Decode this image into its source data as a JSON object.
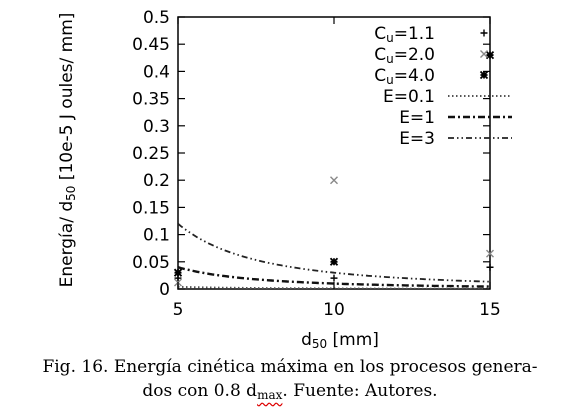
{
  "chart_data": {
    "type": "line",
    "x_label_main": "d",
    "x_label_sub": "50",
    "x_label_unit": " [mm]",
    "y_label_main": "Energía/ d",
    "y_label_sub": "50",
    "y_label_unit": " [10e-5 J oules/ mm]",
    "xlim": [
      5,
      15
    ],
    "ylim": [
      0,
      0.5
    ],
    "x_ticks": [
      "5",
      "10",
      "15"
    ],
    "y_ticks": [
      "0",
      "0.05",
      "0.1",
      "0.15",
      "0.2",
      "0.25",
      "0.3",
      "0.35",
      "0.4",
      "0.45",
      "0.5"
    ],
    "curves": [
      {
        "name": "E=0.1",
        "style": "dotted",
        "energy": 0.1
      },
      {
        "name": "E=1",
        "style": "dashdot",
        "energy": 1
      },
      {
        "name": "E=3",
        "style": "dashdotdot",
        "energy": 3
      }
    ],
    "scatter": [
      {
        "name_main": "C",
        "name_sub": "u",
        "name_rest": "=1.1",
        "marker": "plus",
        "points": [
          [
            5,
            0.02
          ],
          [
            10,
            0.02
          ],
          [
            15,
            0.04
          ]
        ]
      },
      {
        "name_main": "C",
        "name_sub": "u",
        "name_rest": "=2.0",
        "marker": "cross",
        "points": [
          [
            5,
            0.012
          ],
          [
            10,
            0.2
          ],
          [
            15,
            0.065
          ]
        ]
      },
      {
        "name_main": "C",
        "name_sub": "u",
        "name_rest": "=4.0",
        "marker": "star",
        "points": [
          [
            5,
            0.03
          ],
          [
            10,
            0.05
          ],
          [
            15,
            0.43
          ]
        ]
      }
    ],
    "legend_position": "top-right"
  },
  "caption": {
    "line1": "Fig. 16. Energía cinética máxima en los procesos genera-",
    "line2_pre": "dos con 0.8 d",
    "line2_sub": "max",
    "line2_post": ". Fuente: Autores."
  }
}
